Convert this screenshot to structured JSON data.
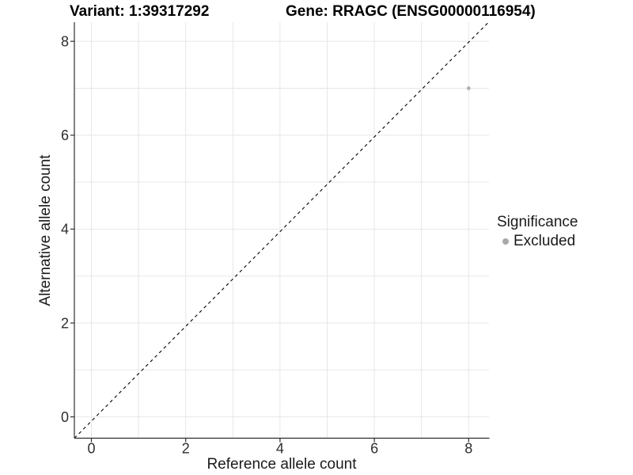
{
  "chart_data": {
    "type": "scatter",
    "title": {
      "left": "Variant: 1:39317292",
      "right": "Gene: RRAGC (ENSG00000116954)"
    },
    "xlabel": "Reference allele count",
    "ylabel": "Alternative allele count",
    "x_ticks": [
      0,
      2,
      4,
      6,
      8
    ],
    "y_ticks": [
      0,
      2,
      4,
      6,
      8
    ],
    "x_gridlines": [
      0,
      1,
      2,
      3,
      4,
      5,
      6,
      7,
      8
    ],
    "y_gridlines": [
      0,
      1,
      2,
      3,
      4,
      5,
      6,
      7,
      8
    ],
    "xlim": [
      -0.36,
      8.45
    ],
    "ylim": [
      -0.45,
      8.42
    ],
    "grid": "on",
    "points": [
      {
        "x": 8,
        "y": 7,
        "series": "Excluded"
      }
    ],
    "reference_line": {
      "equation": "y = x",
      "style": "dashed",
      "color": "#000000"
    },
    "legend": {
      "title": "Significance",
      "position": "right",
      "items": [
        {
          "label": "Excluded",
          "color": "#a9a9a9"
        }
      ]
    },
    "colors": {
      "point": "#b3b3b3",
      "grid": "#e7e7e7",
      "axis": "#2e2e2e",
      "tick_text": "#2e2e2e",
      "background": "#ffffff"
    }
  }
}
